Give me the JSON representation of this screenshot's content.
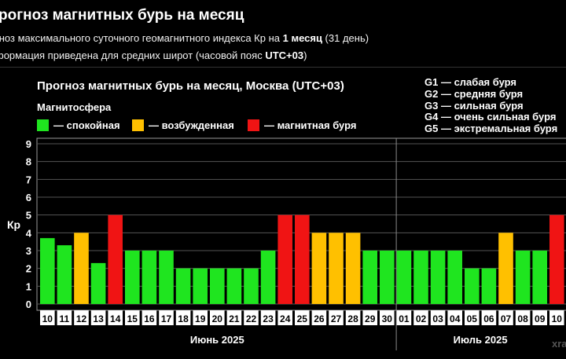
{
  "header": {
    "title": "рогноз магнитных бурь на месяц",
    "line1_pre": "гноз максимального суточного геомагнитного индекса Кр на ",
    "line1_bold": "1 месяц",
    "line1_post": " (31 день)",
    "line2_pre": "формация приведена для средних широт (часовой пояс ",
    "line2_bold": "UTC+03",
    "line2_post": ")"
  },
  "legend": {
    "title": "Магнитосфера",
    "items": [
      {
        "label": "— спокойная",
        "color": "#1fe51f"
      },
      {
        "label": "— возбужденная",
        "color": "#ffc000"
      },
      {
        "label": "— магнитная буря",
        "color": "#f01414"
      }
    ]
  },
  "g_scale": [
    "G1 — слабая буря",
    "G2 — средняя буря",
    "G3 — сильная буря",
    "G4 — очень сильная буря",
    "G5 — экстремальная буря"
  ],
  "watermark": "xra",
  "chart_data": {
    "type": "bar",
    "title": "Прогноз магнитных бурь на месяц, Москва (UTC+03)",
    "ylabel": "Кр",
    "ylim": [
      0,
      9
    ],
    "yticks": [
      "0",
      "1",
      "2",
      "3",
      "4",
      "5",
      "6",
      "7",
      "8",
      "9"
    ],
    "grid": true,
    "legend_placement": "top-left",
    "categories": [
      "10",
      "11",
      "12",
      "13",
      "14",
      "15",
      "16",
      "17",
      "18",
      "19",
      "20",
      "21",
      "22",
      "23",
      "24",
      "25",
      "26",
      "27",
      "28",
      "29",
      "30",
      "01",
      "02",
      "03",
      "04",
      "05",
      "06",
      "07",
      "08",
      "09",
      "10"
    ],
    "values": [
      3.7,
      3.3,
      4,
      2.3,
      5,
      3,
      3,
      3,
      2,
      2,
      2,
      2,
      2,
      3,
      5,
      5,
      4,
      4,
      4,
      3,
      3,
      3,
      3,
      3,
      3,
      2,
      2,
      4,
      3,
      3,
      5
    ],
    "months": [
      {
        "label": "Июнь 2025",
        "start": 0,
        "end": 20
      },
      {
        "label": "Июль 2025",
        "start": 21,
        "end": 30
      }
    ],
    "thresholds": {
      "quiet_below": 4,
      "storm_from": 5
    },
    "colors": {
      "quiet": "#1fe51f",
      "active": "#ffc000",
      "storm": "#f01414"
    }
  }
}
